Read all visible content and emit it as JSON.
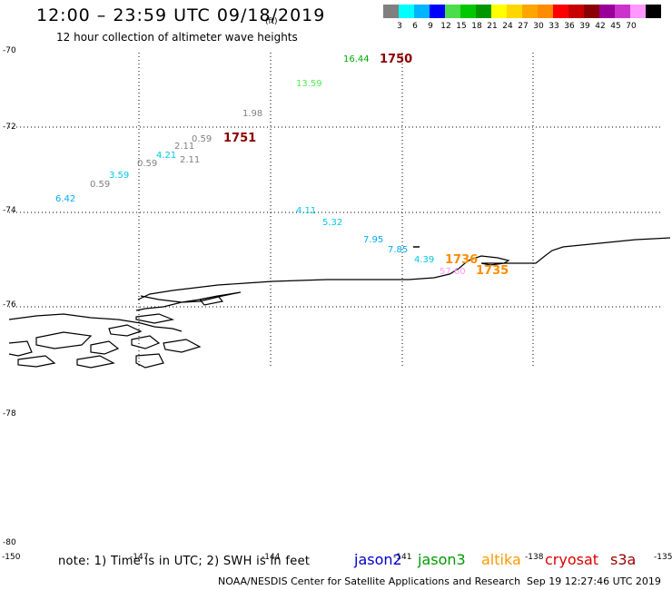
{
  "title": "12:00 – 23:59 UTC 09/18/2019",
  "subtitle": "12 hour collection of altimeter wave heights",
  "legend": {
    "colors": [
      "#808080",
      "#00ffff",
      "#00b4ff",
      "#0000ff",
      "#4bdd4b",
      "#00c800",
      "#009600",
      "#ffff00",
      "#ffd700",
      "#ffa500",
      "#ff8c00",
      "#ff0000",
      "#c80000",
      "#8b0000",
      "#990099",
      "#cc33cc",
      "#ff99ff",
      "#000000"
    ],
    "labels": [
      "3",
      "6",
      "9",
      "12",
      "15",
      "18",
      "21",
      "24",
      "27",
      "30",
      "33",
      "36",
      "39",
      "42",
      "45",
      "70"
    ],
    "units": "(ft)"
  },
  "lat_labels": [
    "-70",
    "-72",
    "-74",
    "-76",
    "-78",
    "-80"
  ],
  "lon_labels": [
    "-150",
    "-147",
    "-144",
    "-141",
    "-138",
    "-135"
  ],
  "observations": [
    {
      "text": "16.44",
      "color": "#00aa00"
    },
    {
      "text": "1750",
      "color": "#8b0000"
    },
    {
      "text": "13.59",
      "color": "#55ee55"
    },
    {
      "text": "1.98",
      "color": "#808080"
    },
    {
      "text": "0.59",
      "color": "#808080"
    },
    {
      "text": "1751",
      "color": "#8b0000"
    },
    {
      "text": "2.11",
      "color": "#808080"
    },
    {
      "text": "4.21",
      "color": "#00c8e6"
    },
    {
      "text": "2.11",
      "color": "#808080"
    },
    {
      "text": "0.59",
      "color": "#808080"
    },
    {
      "text": "3.59",
      "color": "#00c8e6"
    },
    {
      "text": "0.59",
      "color": "#808080"
    },
    {
      "text": "6.42",
      "color": "#00aaff"
    },
    {
      "text": "4.11",
      "color": "#00c8e6"
    },
    {
      "text": "5.32",
      "color": "#00c8e6"
    },
    {
      "text": "7.95",
      "color": "#00aaff"
    },
    {
      "text": "7.85",
      "color": "#00aaff"
    },
    {
      "text": "4.39",
      "color": "#00c8e6"
    },
    {
      "text": "1736",
      "color": "#ff8c00"
    },
    {
      "text": "57.60",
      "color": "#ff99ff"
    },
    {
      "text": "1735",
      "color": "#ff8c00"
    }
  ],
  "note": "note:  1) Time is in UTC;  2) SWH is in feet",
  "satellites": [
    {
      "name": "jason2",
      "color": "#0000cc"
    },
    {
      "name": "jason3",
      "color": "#009900"
    },
    {
      "name": "altika",
      "color": "#ff9900"
    },
    {
      "name": "cryosat",
      "color": "#dd0000"
    },
    {
      "name": "s3a",
      "color": "#990000"
    }
  ],
  "footer": "NOAA/NESDIS Center for Satellite Applications and Research",
  "timestamp": "Sep 19 12:27:46 UTC 2019"
}
